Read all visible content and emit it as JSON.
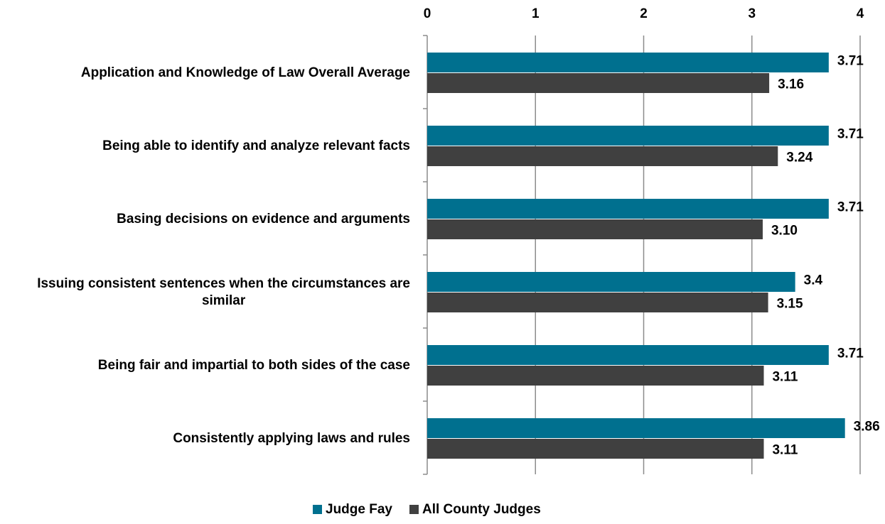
{
  "chart_data": {
    "type": "bar",
    "orientation": "horizontal",
    "categories": [
      "Application and Knowledge of Law Overall Average",
      "Being able to identify and analyze relevant facts",
      "Basing decisions on evidence and arguments",
      "Issuing consistent sentences when the circumstances are similar",
      "Being fair and impartial to both sides of the case",
      "Consistently applying laws and rules"
    ],
    "series": [
      {
        "name": "Judge Fay",
        "color": "#00708f",
        "values": [
          3.71,
          3.71,
          3.71,
          3.4,
          3.71,
          3.86
        ],
        "value_labels": [
          "3.71",
          "3.71",
          "3.71",
          "3.4",
          "3.71",
          "3.86"
        ]
      },
      {
        "name": "All County Judges",
        "color": "#404040",
        "values": [
          3.16,
          3.24,
          3.1,
          3.15,
          3.11,
          3.11
        ],
        "value_labels": [
          "3.16",
          "3.24",
          "3.10",
          "3.15",
          "3.11",
          "3.11"
        ]
      }
    ],
    "xlim": [
      0,
      4
    ],
    "xticks": [
      0,
      1,
      2,
      3,
      4
    ],
    "grid": true,
    "legend": "bottom"
  }
}
